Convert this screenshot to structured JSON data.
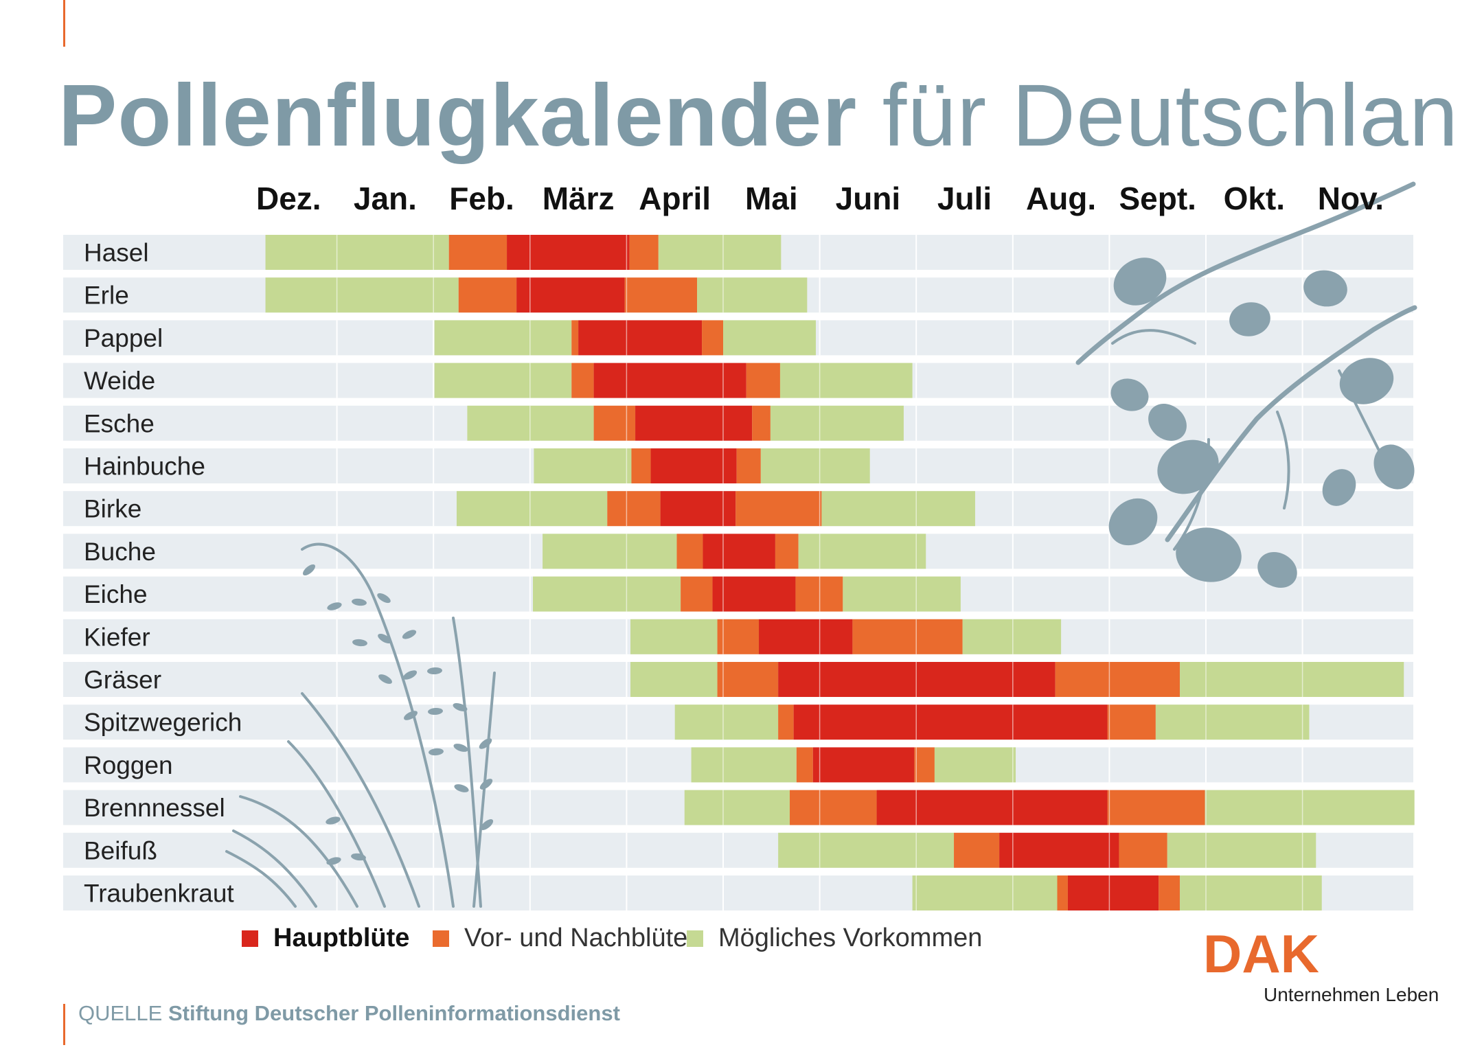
{
  "title": {
    "bold": "Pollenflugkalender",
    "light": "für Deutschland"
  },
  "source": {
    "prefix": "QUELLE",
    "name": "Stiftung Deutscher Polleninformationsdienst"
  },
  "legend": [
    {
      "label": "Hauptblüte",
      "color": "#d9261c"
    },
    {
      "label": "Vor- und Nachblüte",
      "color": "#ea6b2e"
    },
    {
      "label": "Mögliches Vorkommen",
      "color": "#c5d993"
    }
  ],
  "brand": {
    "logo": "DAK",
    "slogan": "Unternehmen Leben",
    "color": "#e8692d"
  },
  "colors": {
    "main": "#d9261c",
    "pre": "#ea6b2e",
    "possible": "#c5d993",
    "row_bg": "#e8edf1",
    "decor": "#8aa2ad"
  },
  "chart_data": {
    "type": "gantt",
    "title": "Pollenflugkalender für Deutschland",
    "x_unit": "months since start of December (0 = 1 Dec, 12 = 30 Nov)",
    "categories": [
      "Dez.",
      "Jan.",
      "Feb.",
      "März",
      "April",
      "Mai",
      "Juni",
      "Juli",
      "Aug.",
      "Sept.",
      "Okt.",
      "Nov."
    ],
    "series": [
      {
        "name": "Hasel",
        "segments": [
          {
            "type": "possible",
            "start": 0.26,
            "end": 2.16
          },
          {
            "type": "pre",
            "start": 2.16,
            "end": 2.76
          },
          {
            "type": "main",
            "start": 2.76,
            "end": 4.03
          },
          {
            "type": "pre",
            "start": 4.03,
            "end": 4.33
          },
          {
            "type": "possible",
            "start": 4.33,
            "end": 5.6
          }
        ]
      },
      {
        "name": "Erle",
        "segments": [
          {
            "type": "possible",
            "start": 0.26,
            "end": 2.26
          },
          {
            "type": "pre",
            "start": 2.26,
            "end": 2.86
          },
          {
            "type": "main",
            "start": 2.86,
            "end": 3.98
          },
          {
            "type": "pre",
            "start": 3.98,
            "end": 4.73
          },
          {
            "type": "possible",
            "start": 4.73,
            "end": 5.87
          }
        ]
      },
      {
        "name": "Pappel",
        "segments": [
          {
            "type": "possible",
            "start": 2.01,
            "end": 3.43
          },
          {
            "type": "pre",
            "start": 3.43,
            "end": 3.5
          },
          {
            "type": "main",
            "start": 3.5,
            "end": 4.78
          },
          {
            "type": "pre",
            "start": 4.78,
            "end": 5.0
          },
          {
            "type": "possible",
            "start": 5.0,
            "end": 5.96
          }
        ]
      },
      {
        "name": "Weide",
        "segments": [
          {
            "type": "possible",
            "start": 2.01,
            "end": 3.43
          },
          {
            "type": "pre",
            "start": 3.43,
            "end": 3.66
          },
          {
            "type": "main",
            "start": 3.66,
            "end": 5.24
          },
          {
            "type": "pre",
            "start": 5.24,
            "end": 5.59
          },
          {
            "type": "possible",
            "start": 5.59,
            "end": 6.96
          }
        ]
      },
      {
        "name": "Esche",
        "segments": [
          {
            "type": "possible",
            "start": 2.35,
            "end": 3.66
          },
          {
            "type": "pre",
            "start": 3.66,
            "end": 4.09
          },
          {
            "type": "main",
            "start": 4.09,
            "end": 5.3
          },
          {
            "type": "pre",
            "start": 5.3,
            "end": 5.49
          },
          {
            "type": "possible",
            "start": 5.49,
            "end": 6.87
          }
        ]
      },
      {
        "name": "Hainbuche",
        "segments": [
          {
            "type": "possible",
            "start": 3.04,
            "end": 4.05
          },
          {
            "type": "pre",
            "start": 4.05,
            "end": 4.25
          },
          {
            "type": "main",
            "start": 4.25,
            "end": 5.14
          },
          {
            "type": "pre",
            "start": 5.14,
            "end": 5.39
          },
          {
            "type": "possible",
            "start": 5.39,
            "end": 6.52
          }
        ]
      },
      {
        "name": "Birke",
        "segments": [
          {
            "type": "possible",
            "start": 2.24,
            "end": 3.8
          },
          {
            "type": "pre",
            "start": 3.8,
            "end": 4.35
          },
          {
            "type": "main",
            "start": 4.35,
            "end": 5.13
          },
          {
            "type": "pre",
            "start": 5.13,
            "end": 6.02
          },
          {
            "type": "possible",
            "start": 6.02,
            "end": 7.61
          }
        ]
      },
      {
        "name": "Buche",
        "segments": [
          {
            "type": "possible",
            "start": 3.13,
            "end": 4.52
          },
          {
            "type": "pre",
            "start": 4.52,
            "end": 4.79
          },
          {
            "type": "main",
            "start": 4.79,
            "end": 5.54
          },
          {
            "type": "pre",
            "start": 5.54,
            "end": 5.78
          },
          {
            "type": "possible",
            "start": 5.78,
            "end": 7.1
          }
        ]
      },
      {
        "name": "Eiche",
        "segments": [
          {
            "type": "possible",
            "start": 3.03,
            "end": 4.56
          },
          {
            "type": "pre",
            "start": 4.56,
            "end": 4.89
          },
          {
            "type": "main",
            "start": 4.89,
            "end": 5.75
          },
          {
            "type": "pre",
            "start": 5.75,
            "end": 6.24
          },
          {
            "type": "possible",
            "start": 6.24,
            "end": 7.46
          }
        ]
      },
      {
        "name": "Kiefer",
        "segments": [
          {
            "type": "possible",
            "start": 4.04,
            "end": 4.94
          },
          {
            "type": "pre",
            "start": 4.94,
            "end": 5.37
          },
          {
            "type": "main",
            "start": 5.37,
            "end": 6.34
          },
          {
            "type": "pre",
            "start": 6.34,
            "end": 7.48
          },
          {
            "type": "possible",
            "start": 7.48,
            "end": 8.5
          }
        ]
      },
      {
        "name": "Gräser",
        "segments": [
          {
            "type": "possible",
            "start": 4.04,
            "end": 4.94
          },
          {
            "type": "pre",
            "start": 4.94,
            "end": 5.57
          },
          {
            "type": "main",
            "start": 5.57,
            "end": 8.44
          },
          {
            "type": "pre",
            "start": 8.44,
            "end": 9.73
          },
          {
            "type": "possible",
            "start": 9.73,
            "end": 12.05
          }
        ]
      },
      {
        "name": "Spitzwegerich",
        "segments": [
          {
            "type": "possible",
            "start": 4.5,
            "end": 5.57
          },
          {
            "type": "pre",
            "start": 5.57,
            "end": 5.73
          },
          {
            "type": "main",
            "start": 5.73,
            "end": 8.98
          },
          {
            "type": "pre",
            "start": 8.98,
            "end": 9.48
          },
          {
            "type": "possible",
            "start": 9.48,
            "end": 11.07
          }
        ]
      },
      {
        "name": "Roggen",
        "segments": [
          {
            "type": "possible",
            "start": 4.67,
            "end": 5.76
          },
          {
            "type": "pre",
            "start": 5.76,
            "end": 5.93
          },
          {
            "type": "main",
            "start": 5.93,
            "end": 6.98
          },
          {
            "type": "pre",
            "start": 6.98,
            "end": 7.19
          },
          {
            "type": "possible",
            "start": 7.19,
            "end": 8.03
          }
        ]
      },
      {
        "name": "Brennnessel",
        "segments": [
          {
            "type": "possible",
            "start": 4.6,
            "end": 5.69
          },
          {
            "type": "pre",
            "start": 5.69,
            "end": 6.59
          },
          {
            "type": "main",
            "start": 6.59,
            "end": 8.98
          },
          {
            "type": "pre",
            "start": 8.98,
            "end": 9.99
          },
          {
            "type": "possible",
            "start": 9.99,
            "end": 12.16
          }
        ]
      },
      {
        "name": "Beifuß",
        "segments": [
          {
            "type": "possible",
            "start": 5.57,
            "end": 7.39
          },
          {
            "type": "pre",
            "start": 7.39,
            "end": 7.86
          },
          {
            "type": "main",
            "start": 7.86,
            "end": 9.1
          },
          {
            "type": "pre",
            "start": 9.1,
            "end": 9.6
          },
          {
            "type": "possible",
            "start": 9.6,
            "end": 11.14
          }
        ]
      },
      {
        "name": "Traubenkraut",
        "segments": [
          {
            "type": "possible",
            "start": 6.96,
            "end": 8.46
          },
          {
            "type": "pre",
            "start": 8.46,
            "end": 8.57
          },
          {
            "type": "main",
            "start": 8.57,
            "end": 9.51
          },
          {
            "type": "pre",
            "start": 9.51,
            "end": 9.73
          },
          {
            "type": "possible",
            "start": 9.73,
            "end": 11.2
          }
        ]
      }
    ]
  }
}
